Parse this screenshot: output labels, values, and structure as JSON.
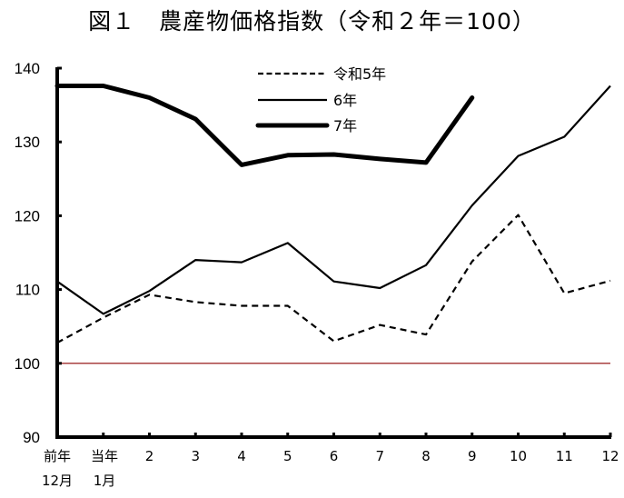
{
  "title": "図１　農産物価格指数（令和２年＝100）",
  "chart_data": {
    "type": "line",
    "title": "図１　農産物価格指数（令和２年＝100）",
    "xlabel": "",
    "ylabel": "",
    "categories": [
      "前年12月",
      "当年1月",
      "2",
      "3",
      "4",
      "5",
      "6",
      "7",
      "8",
      "9",
      "10",
      "11",
      "12"
    ],
    "category_labels": [
      [
        "前年",
        "12月"
      ],
      [
        "当年",
        "1月"
      ],
      [
        "2"
      ],
      [
        "3"
      ],
      [
        "4"
      ],
      [
        "5"
      ],
      [
        "6"
      ],
      [
        "7"
      ],
      [
        "8"
      ],
      [
        "9"
      ],
      [
        "10"
      ],
      [
        "11"
      ],
      [
        "12"
      ]
    ],
    "ylim": [
      90,
      140
    ],
    "yticks": [
      90,
      100,
      110,
      120,
      130,
      140
    ],
    "grid": false,
    "reference_line": {
      "value": 100,
      "color": "#8b0000"
    },
    "legend_position": "top-center",
    "series": [
      {
        "name": "令和5年",
        "style": "dashed",
        "width": 2.2,
        "color": "#000000",
        "values": [
          102.8,
          106.2,
          109.3,
          108.3,
          107.8,
          107.8,
          103.0,
          105.2,
          103.9,
          113.8,
          120.1,
          109.5,
          111.2
        ]
      },
      {
        "name": "6年",
        "style": "solid",
        "width": 2.2,
        "color": "#000000",
        "values": [
          111.1,
          106.7,
          109.8,
          114.0,
          113.7,
          116.3,
          111.1,
          110.2,
          113.3,
          121.4,
          128.1,
          130.7,
          137.6
        ]
      },
      {
        "name": "7年",
        "style": "solid",
        "width": 5,
        "color": "#000000",
        "values": [
          137.6,
          137.6,
          136.0,
          133.1,
          126.9,
          128.2,
          128.3,
          127.7,
          127.2,
          136.0,
          null,
          null,
          null
        ]
      }
    ]
  }
}
